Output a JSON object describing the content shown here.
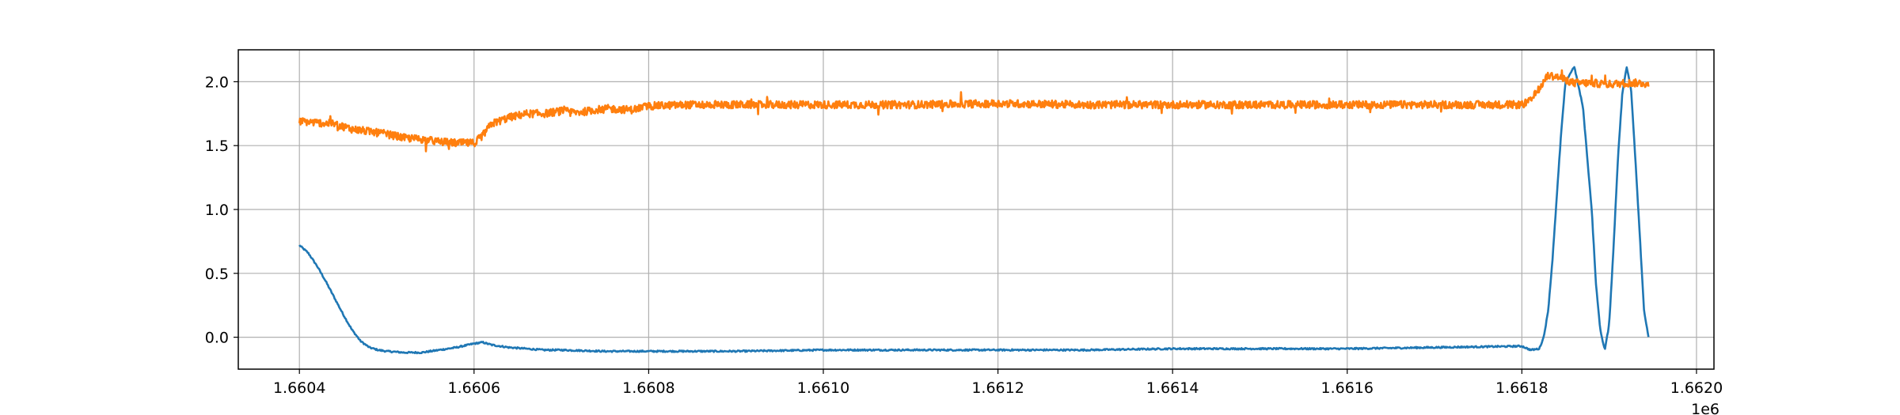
{
  "chart_data": {
    "type": "line",
    "title": "",
    "xlabel": "",
    "ylabel": "",
    "x_offset_label": "1e6",
    "xlim": [
      1.66033,
      1.66202
    ],
    "ylim": [
      -0.25,
      2.25
    ],
    "xticks": [
      1.6604,
      1.6606,
      1.6608,
      1.661,
      1.6612,
      1.6614,
      1.6616,
      1.6618,
      1.662
    ],
    "xtick_labels": [
      "1.6604",
      "1.6606",
      "1.6608",
      "1.6610",
      "1.6612",
      "1.6614",
      "1.6616",
      "1.6618",
      "1.6620"
    ],
    "yticks": [
      0.0,
      0.5,
      1.0,
      1.5,
      2.0
    ],
    "ytick_labels": [
      "0.0",
      "0.5",
      "1.0",
      "1.5",
      "2.0"
    ],
    "grid": true,
    "legend": "none",
    "series": [
      {
        "color": "#1f77b4",
        "x": [
          1.6604,
          1.66041,
          1.66042,
          1.66043,
          1.66044,
          1.66045,
          1.66046,
          1.66047,
          1.66048,
          1.66049,
          1.6605,
          1.66052,
          1.66054,
          1.66056,
          1.66058,
          1.6606,
          1.66061,
          1.66062,
          1.66064,
          1.66066,
          1.66068,
          1.6607,
          1.66075,
          1.6608,
          1.6609,
          1.661,
          1.6611,
          1.6612,
          1.6613,
          1.6614,
          1.6615,
          1.6616,
          1.6617,
          1.6618,
          1.66181,
          1.66182,
          1.661825,
          1.66183,
          1.661835,
          1.66184,
          1.661845,
          1.66185,
          1.66186,
          1.66187,
          1.66188,
          1.661885,
          1.66189,
          1.661895,
          1.6619,
          1.661905,
          1.66191,
          1.661915,
          1.66192,
          1.661925,
          1.66193,
          1.661935,
          1.66194,
          1.661945
        ],
        "y": [
          0.72,
          0.66,
          0.56,
          0.44,
          0.31,
          0.18,
          0.06,
          -0.03,
          -0.08,
          -0.1,
          -0.11,
          -0.12,
          -0.12,
          -0.1,
          -0.08,
          -0.05,
          -0.04,
          -0.06,
          -0.08,
          -0.09,
          -0.1,
          -0.1,
          -0.11,
          -0.11,
          -0.11,
          -0.1,
          -0.1,
          -0.1,
          -0.1,
          -0.09,
          -0.09,
          -0.09,
          -0.08,
          -0.07,
          -0.1,
          -0.09,
          0.0,
          0.2,
          0.6,
          1.1,
          1.6,
          2.0,
          2.12,
          1.8,
          1.0,
          0.4,
          0.05,
          -0.1,
          0.1,
          0.7,
          1.4,
          1.9,
          2.12,
          1.95,
          1.4,
          0.8,
          0.2,
          0.0
        ]
      },
      {
        "color": "#ff7f0e",
        "x": [
          1.6604,
          1.66042,
          1.66044,
          1.66046,
          1.66048,
          1.6605,
          1.66052,
          1.66054,
          1.66056,
          1.66058,
          1.6606,
          1.66061,
          1.66062,
          1.66064,
          1.66066,
          1.66068,
          1.6607,
          1.66072,
          1.66075,
          1.66078,
          1.6608,
          1.66085,
          1.6609,
          1.661,
          1.6611,
          1.6612,
          1.6613,
          1.6614,
          1.6615,
          1.6616,
          1.6617,
          1.6618,
          1.66181,
          1.66182,
          1.66183,
          1.66184,
          1.66186,
          1.66188,
          1.6619,
          1.66192,
          1.66194,
          1.661945
        ],
        "y": [
          1.69,
          1.68,
          1.67,
          1.63,
          1.61,
          1.59,
          1.56,
          1.55,
          1.53,
          1.52,
          1.52,
          1.58,
          1.67,
          1.72,
          1.75,
          1.75,
          1.77,
          1.76,
          1.79,
          1.78,
          1.81,
          1.82,
          1.82,
          1.82,
          1.82,
          1.83,
          1.82,
          1.82,
          1.82,
          1.82,
          1.82,
          1.82,
          1.85,
          1.95,
          2.05,
          2.04,
          1.99,
          1.99,
          1.98,
          1.99,
          1.99,
          1.97
        ],
        "noise": 0.03
      }
    ]
  }
}
